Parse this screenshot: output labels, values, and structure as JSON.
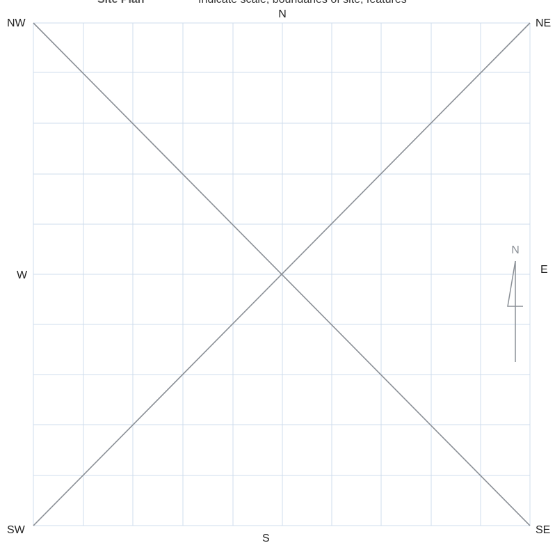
{
  "header": {
    "title": "Site Plan",
    "subtitle": "Indicate scale, boundaries of site, features"
  },
  "directions": {
    "nw": "NW",
    "n": "N",
    "ne": "NE",
    "w": "W",
    "e": "E",
    "sw": "SW",
    "s": "S",
    "se": "SE"
  },
  "north_arrow": {
    "label": "N"
  }
}
